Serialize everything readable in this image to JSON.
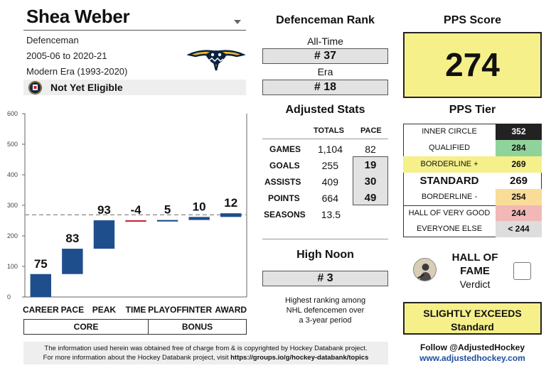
{
  "player": {
    "name": "Shea Weber",
    "position": "Defenceman",
    "seasons": "2005-06 to 2020-21",
    "era": "Modern Era (1993-2020)",
    "hof_status": "Not Yet Eligible"
  },
  "chart_data": {
    "type": "bar",
    "subtype": "waterfall",
    "categories": [
      "CAREER",
      "PACE",
      "PEAK",
      "TIME",
      "PLAYOFF",
      "INTER",
      "AWARD"
    ],
    "increments": [
      75,
      83,
      93,
      -4,
      5,
      10,
      12
    ],
    "value_labels": [
      "75",
      "83",
      "93",
      "-4",
      "5",
      "10",
      "12"
    ],
    "y_ticks": [
      "0",
      "100",
      "200",
      "300",
      "400",
      "500",
      "600"
    ],
    "ylim": [
      0,
      600
    ],
    "reference_line": 269,
    "groups": [
      "CORE",
      "BONUS"
    ],
    "colors": {
      "positive": "#1f4e8c",
      "negative": "#c0202a",
      "reference": "#999999"
    }
  },
  "defenceman_rank": {
    "title": "Defenceman Rank",
    "all_time_label": "All-Time",
    "all_time_value": "# 37",
    "era_label": "Era",
    "era_value": "# 18"
  },
  "adjusted_stats": {
    "title": "Adjusted Stats",
    "col_totals": "TOTALS",
    "col_pace": "PACE",
    "rows": [
      {
        "label": "GAMES",
        "total": "1,104",
        "pace": "82"
      },
      {
        "label": "GOALS",
        "total": "255",
        "pace": "19"
      },
      {
        "label": "ASSISTS",
        "total": "409",
        "pace": "30"
      },
      {
        "label": "POINTS",
        "total": "664",
        "pace": "49"
      },
      {
        "label": "SEASONS",
        "total": "13.5",
        "pace": ""
      }
    ]
  },
  "high_noon": {
    "title": "High Noon",
    "value": "# 3",
    "note_1": "Highest ranking among",
    "note_2": "NHL defencemen over",
    "note_3": "a 3-year period"
  },
  "pps": {
    "title": "PPS Score",
    "score": "274",
    "tier_title": "PPS Tier",
    "tiers": [
      {
        "label": "INNER CIRCLE",
        "value": "352"
      },
      {
        "label": "QUALIFIED",
        "value": "284"
      },
      {
        "label": "BORDERLINE +",
        "value": "269"
      },
      {
        "label": "STANDARD",
        "value": "269"
      },
      {
        "label": "BORDERLINE -",
        "value": "254"
      },
      {
        "label": "HALL OF VERY GOOD",
        "value": "244"
      },
      {
        "label": "EVERYONE ELSE",
        "value": "< 244"
      }
    ],
    "colors": {
      "inner_circle": "#222222",
      "qualified": "#8fd39a",
      "borderline_plus": "#f5f08a",
      "borderline_minus": "#f8dc98",
      "hall_very_good": "#f2b8b8",
      "everyone_else": "#dddddd"
    }
  },
  "hof_verdict": {
    "title_line1": "HALL OF",
    "title_line2": "FAME",
    "subtitle": "Verdict",
    "verdict_line1": "SLIGHTLY EXCEEDS",
    "verdict_line2": "Standard"
  },
  "footer": {
    "line1": "The information used herein was obtained free of charge from & is copyrighted by Hockey Databank project.",
    "line2_prefix": "For more information about the Hockey Databank project, visit ",
    "line2_link": "https://groups.io/g/hockey-databank/topics"
  },
  "social": {
    "follow": "Follow @AdjustedHockey",
    "website": "www.adjustedhockey.com"
  }
}
